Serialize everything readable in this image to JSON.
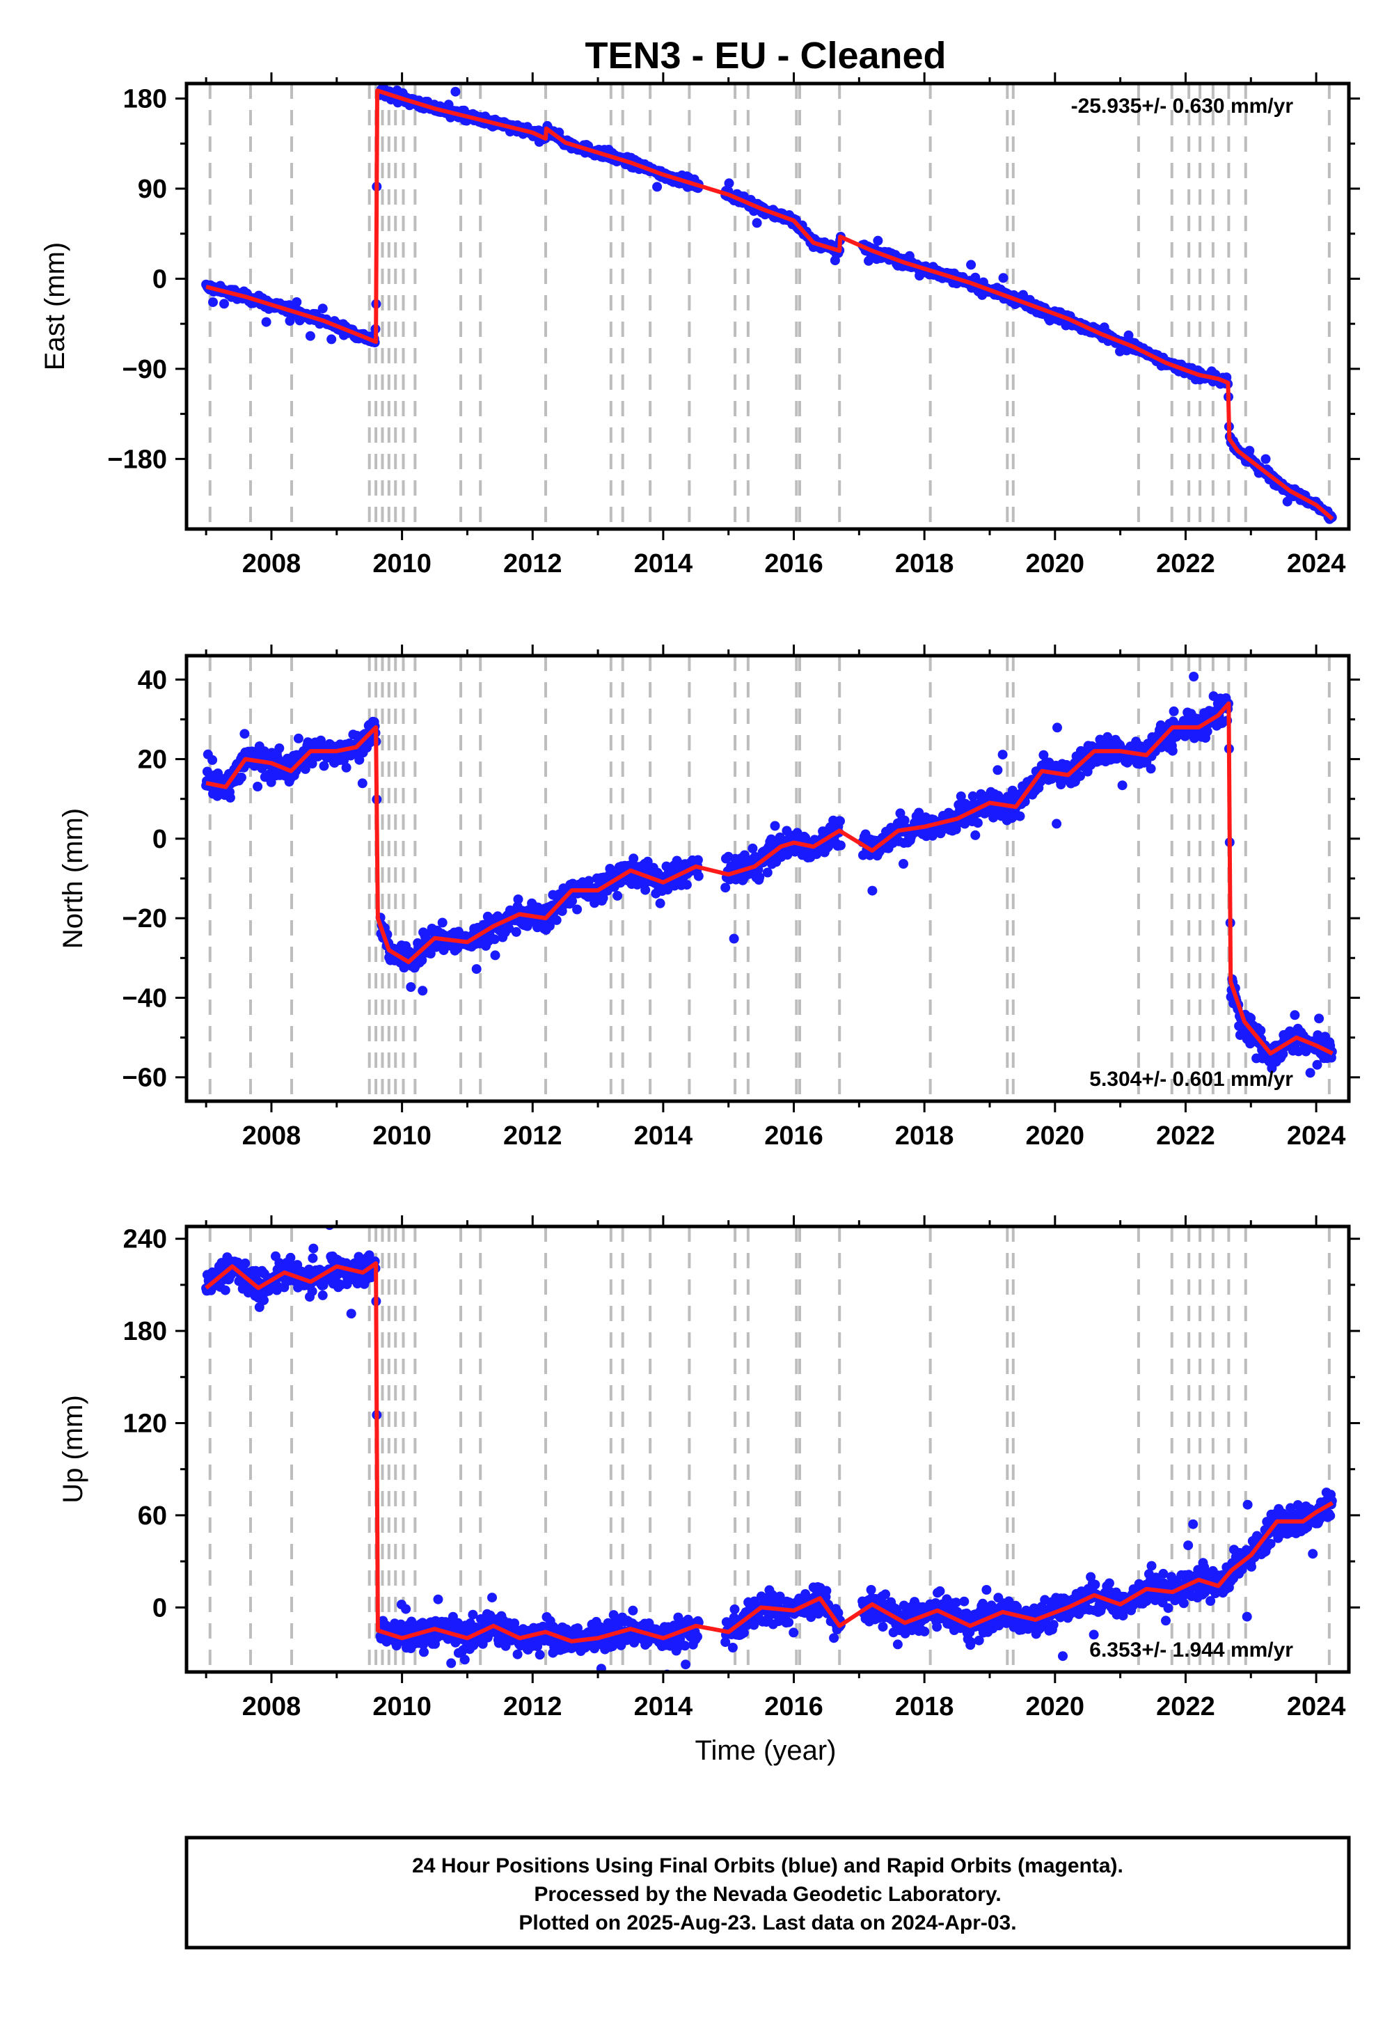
{
  "title": "TEN3  - EU - Cleaned",
  "xlabel": "Time (year)",
  "footer": [
    "24 Hour Positions Using Final Orbits (blue) and Rapid Orbits (magenta).",
    "Processed by the Nevada Geodetic Laboratory.",
    "Plotted on 2025-Aug-23. Last data on 2024-Apr-03."
  ],
  "colors": {
    "data": "#1a1aff",
    "model": "#ff1a1a",
    "steps": "#bdbdbd"
  },
  "chart_data": [
    {
      "type": "scatter",
      "ylabel": "East (mm)",
      "rate": "-25.935+/- 0.630 mm/yr",
      "rate_position": "top-right",
      "xlim": [
        2006.7,
        2024.5
      ],
      "ylim": [
        -250,
        195
      ],
      "xticks": [
        2008,
        2010,
        2012,
        2014,
        2016,
        2018,
        2020,
        2022,
        2024
      ],
      "yticks": [
        180,
        90,
        0,
        -90,
        -180
      ],
      "ytick_labels": [
        "180",
        "90",
        "0",
        "−90",
        "−180"
      ],
      "model_x": [
        2007.0,
        2007.6,
        2008.2,
        2008.8,
        2009.3,
        2009.6,
        2009.62,
        2010.0,
        2010.5,
        2011.0,
        2011.5,
        2012.0,
        2012.2,
        2012.21,
        2012.5,
        2013.0,
        2013.5,
        2014.0,
        2014.5,
        2015.0,
        2015.5,
        2016.0,
        2016.3,
        2016.7,
        2016.71,
        2017.2,
        2017.7,
        2018.2,
        2018.7,
        2019.2,
        2019.7,
        2020.2,
        2020.7,
        2021.2,
        2021.7,
        2022.2,
        2022.5,
        2022.65,
        2022.67,
        2022.8,
        2023.2,
        2023.6,
        2024.0,
        2024.25
      ],
      "model_y": [
        -8,
        -18,
        -30,
        -42,
        -55,
        -63,
        188,
        180,
        170,
        162,
        154,
        146,
        140,
        150,
        136,
        126,
        116,
        104,
        94,
        84,
        70,
        58,
        36,
        28,
        42,
        28,
        16,
        6,
        -4,
        -16,
        -28,
        -40,
        -55,
        -68,
        -84,
        -96,
        -100,
        -104,
        -160,
        -172,
        -192,
        -212,
        -226,
        -240
      ],
      "noise": 4
    },
    {
      "type": "scatter",
      "ylabel": "North (mm)",
      "rate": "5.304+/- 0.601 mm/yr",
      "rate_position": "bottom-right",
      "xlim": [
        2006.7,
        2024.5
      ],
      "ylim": [
        -66,
        46
      ],
      "xticks": [
        2008,
        2010,
        2012,
        2014,
        2016,
        2018,
        2020,
        2022,
        2024
      ],
      "yticks": [
        40,
        20,
        0,
        -20,
        -40,
        -60
      ],
      "ytick_labels": [
        "40",
        "20",
        "0",
        "−20",
        "−40",
        "−60"
      ],
      "model_x": [
        2007.0,
        2007.3,
        2007.6,
        2008.0,
        2008.3,
        2008.6,
        2009.0,
        2009.3,
        2009.6,
        2009.63,
        2009.8,
        2010.1,
        2010.5,
        2011.0,
        2011.4,
        2011.8,
        2012.2,
        2012.6,
        2013.0,
        2013.5,
        2014.0,
        2014.5,
        2015.0,
        2015.4,
        2015.8,
        2016.0,
        2016.3,
        2016.7,
        2017.2,
        2017.6,
        2018.0,
        2018.5,
        2019.0,
        2019.4,
        2019.8,
        2020.2,
        2020.6,
        2021.0,
        2021.4,
        2021.8,
        2022.2,
        2022.5,
        2022.66,
        2022.69,
        2022.9,
        2023.3,
        2023.7,
        2024.0,
        2024.25
      ],
      "model_y": [
        14,
        13,
        20,
        19,
        17,
        22,
        22,
        23,
        28,
        -20,
        -28,
        -31,
        -25,
        -26,
        -22,
        -19,
        -20,
        -13,
        -13,
        -8,
        -11,
        -7,
        -9,
        -7,
        -2,
        -1,
        -2,
        2,
        -3,
        2,
        3,
        5,
        9,
        8,
        17,
        16,
        22,
        22,
        21,
        28,
        28,
        31,
        34,
        -36,
        -46,
        -54,
        -50,
        -52,
        -54
      ],
      "noise": 3
    },
    {
      "type": "scatter",
      "ylabel": "Up (mm)",
      "rate": "6.353+/- 1.944 mm/yr",
      "rate_position": "bottom-right",
      "xlim": [
        2006.7,
        2024.5
      ],
      "ylim": [
        -42,
        248
      ],
      "xticks": [
        2008,
        2010,
        2012,
        2014,
        2016,
        2018,
        2020,
        2022,
        2024
      ],
      "yticks": [
        240,
        180,
        120,
        60,
        0
      ],
      "ytick_labels": [
        "240",
        "180",
        "120",
        "60",
        "0"
      ],
      "model_x": [
        2007.0,
        2007.4,
        2007.8,
        2008.2,
        2008.6,
        2009.0,
        2009.4,
        2009.6,
        2009.63,
        2010.0,
        2010.5,
        2011.0,
        2011.4,
        2011.8,
        2012.2,
        2012.6,
        2013.0,
        2013.5,
        2014.0,
        2014.5,
        2015.0,
        2015.5,
        2016.0,
        2016.4,
        2016.7,
        2017.2,
        2017.7,
        2018.2,
        2018.7,
        2019.2,
        2019.7,
        2020.2,
        2020.6,
        2021.0,
        2021.4,
        2021.8,
        2022.2,
        2022.5,
        2022.7,
        2023.0,
        2023.4,
        2023.8,
        2024.0,
        2024.25
      ],
      "model_y": [
        208,
        222,
        208,
        218,
        212,
        222,
        218,
        224,
        -15,
        -20,
        -14,
        -20,
        -12,
        -20,
        -16,
        -22,
        -20,
        -14,
        -20,
        -12,
        -16,
        0,
        -2,
        6,
        -12,
        2,
        -10,
        -2,
        -12,
        -3,
        -8,
        0,
        8,
        2,
        12,
        10,
        18,
        14,
        24,
        34,
        56,
        56,
        62,
        68
      ],
      "noise": 9
    }
  ],
  "step_years": [
    2007.06,
    2007.68,
    2008.31,
    2009.5,
    2009.6,
    2009.7,
    2009.8,
    2009.9,
    2010.02,
    2010.2,
    2010.9,
    2011.2,
    2012.2,
    2013.2,
    2013.38,
    2013.8,
    2014.4,
    2015.1,
    2015.3,
    2016.04,
    2016.09,
    2016.7,
    2018.09,
    2019.27,
    2019.36,
    2021.28,
    2021.79,
    2022.05,
    2022.22,
    2022.42,
    2022.66,
    2022.92,
    2024.2
  ]
}
